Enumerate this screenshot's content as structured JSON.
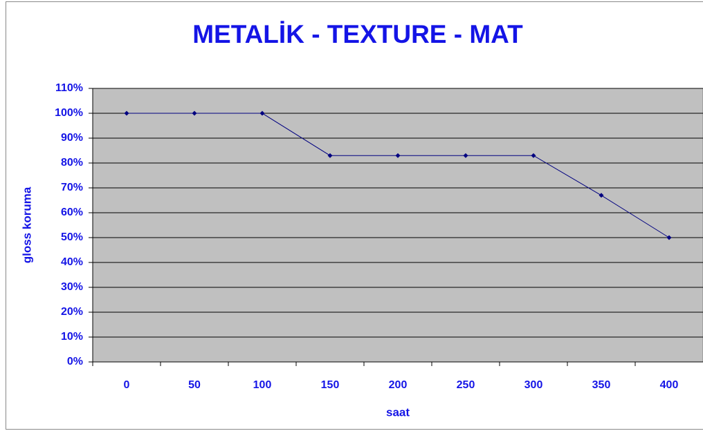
{
  "chart_data": {
    "type": "line",
    "title": "METALİK - TEXTURE - MAT",
    "x_label": "saat",
    "y_label": "gloss koruma",
    "categories": [
      "0",
      "50",
      "100",
      "150",
      "200",
      "250",
      "300",
      "350",
      "400"
    ],
    "series": [
      {
        "name": "gloss koruma",
        "color": "#000080",
        "values": [
          100,
          100,
          100,
          83,
          83,
          83,
          83,
          67,
          50
        ]
      }
    ],
    "ylim": [
      0,
      110
    ],
    "yticks": [
      {
        "value": 0,
        "label": "0%"
      },
      {
        "value": 10,
        "label": "10%"
      },
      {
        "value": 20,
        "label": "20%"
      },
      {
        "value": 30,
        "label": "30%"
      },
      {
        "value": 40,
        "label": "40%"
      },
      {
        "value": 50,
        "label": "50%"
      },
      {
        "value": 60,
        "label": "60%"
      },
      {
        "value": 70,
        "label": "70%"
      },
      {
        "value": 80,
        "label": "80%"
      },
      {
        "value": 90,
        "label": "90%"
      },
      {
        "value": 100,
        "label": "100%"
      },
      {
        "value": 110,
        "label": "110%"
      }
    ],
    "grid": true,
    "plot_background": "#c0c0c0"
  }
}
